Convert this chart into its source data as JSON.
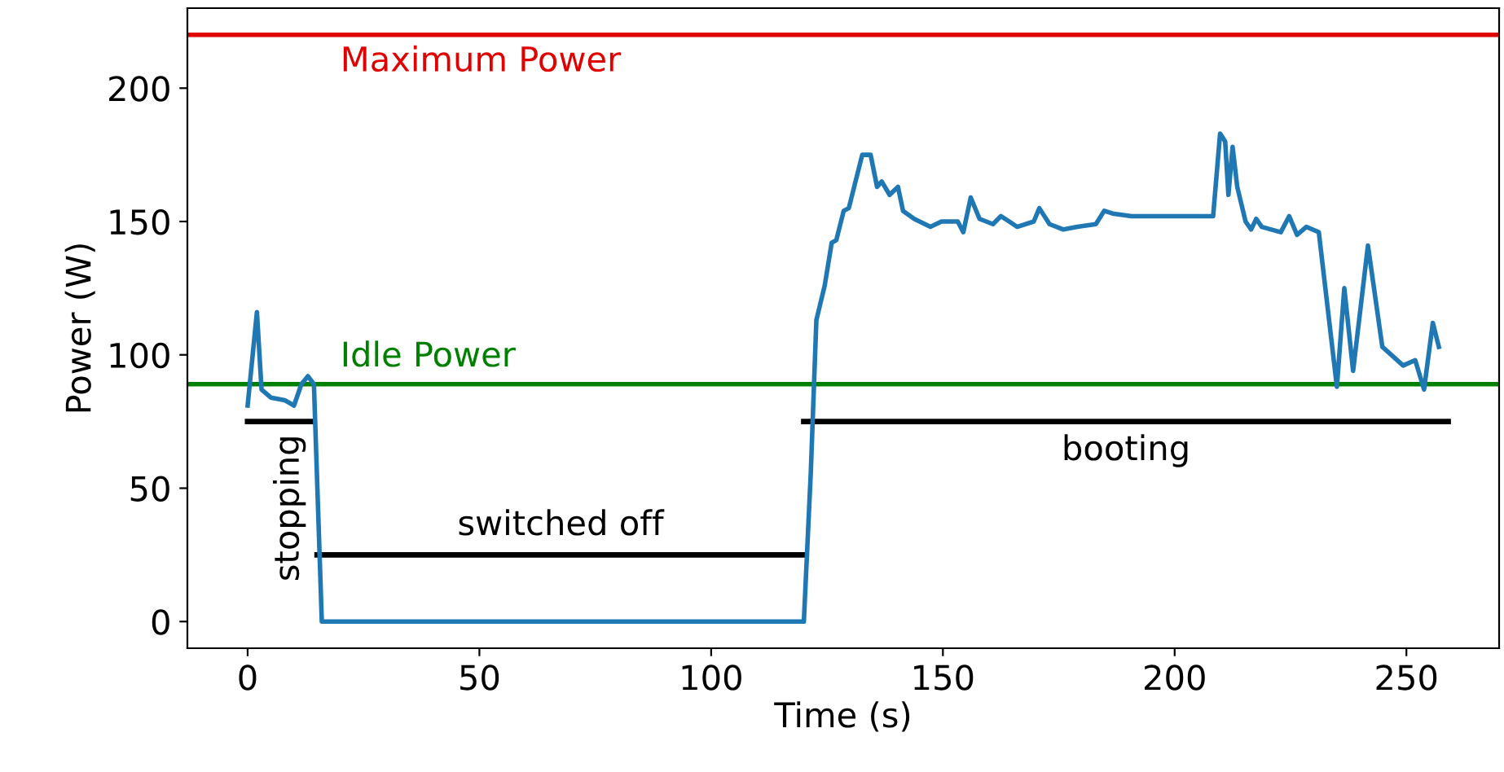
{
  "chart_data": {
    "type": "line",
    "xlabel": "Time (s)",
    "ylabel": "Power (W)",
    "xlim": [
      -13,
      270
    ],
    "ylim": [
      -10,
      230
    ],
    "xticks": [
      0,
      50,
      100,
      150,
      200,
      250
    ],
    "yticks": [
      0,
      50,
      100,
      150,
      200
    ],
    "grid": false,
    "legend": false,
    "series": [
      {
        "color": "#1f77b4",
        "x": [
          0,
          2,
          3,
          5,
          8,
          10,
          11.6,
          13,
          14.3,
          16,
          120,
          121.5,
          122.7,
          124.5,
          126,
          127,
          128.6,
          129.7,
          131,
          132.6,
          134.4,
          135.8,
          136.8,
          138.5,
          140.3,
          141.4,
          143.8,
          147.3,
          149.7,
          153.2,
          154.4,
          156,
          157.9,
          160.8,
          162.5,
          164.3,
          166,
          169.6,
          170.8,
          173,
          176,
          179,
          183,
          184.8,
          186.6,
          190.7,
          197.7,
          208.3,
          209.8,
          210.9,
          211.6,
          212.5,
          213.5,
          215.3,
          216.5,
          217.6,
          218.8,
          222.9,
          224.7,
          226.4,
          228.4,
          231.1,
          235,
          236.6,
          238.5,
          241.7,
          244.8,
          249.3,
          251.9,
          253.8,
          255.7,
          257
        ],
        "values": [
          81,
          116,
          87,
          84,
          83,
          81,
          89,
          92,
          89,
          0,
          0,
          56,
          113,
          126,
          142,
          143,
          154,
          155,
          164,
          175,
          175,
          163,
          165,
          160,
          163,
          154,
          151,
          148,
          150,
          150,
          146,
          159,
          151,
          149,
          152,
          150,
          148,
          150,
          155,
          149,
          147,
          148,
          149,
          154,
          153,
          152,
          152,
          152,
          183,
          180,
          160,
          178,
          163,
          150,
          147,
          151,
          148,
          146,
          152,
          145,
          148,
          146,
          88,
          125,
          94,
          141,
          103,
          96,
          98,
          87,
          112,
          103
        ]
      },
      {
        "name": "stopping",
        "color": "#000000",
        "x": [
          0,
          14
        ],
        "values": [
          75,
          75
        ]
      },
      {
        "name": "switched off",
        "color": "#000000",
        "x": [
          15,
          120
        ],
        "values": [
          25,
          25
        ]
      },
      {
        "name": "booting",
        "color": "#000000",
        "x": [
          120,
          259
        ],
        "values": [
          75,
          75
        ]
      }
    ],
    "ref_lines": [
      {
        "axis": "y",
        "value": 220,
        "label": "Maximum Power",
        "color": "#e00000"
      },
      {
        "axis": "y",
        "value": 89,
        "label": "Idle Power",
        "color": "#008000"
      }
    ]
  }
}
